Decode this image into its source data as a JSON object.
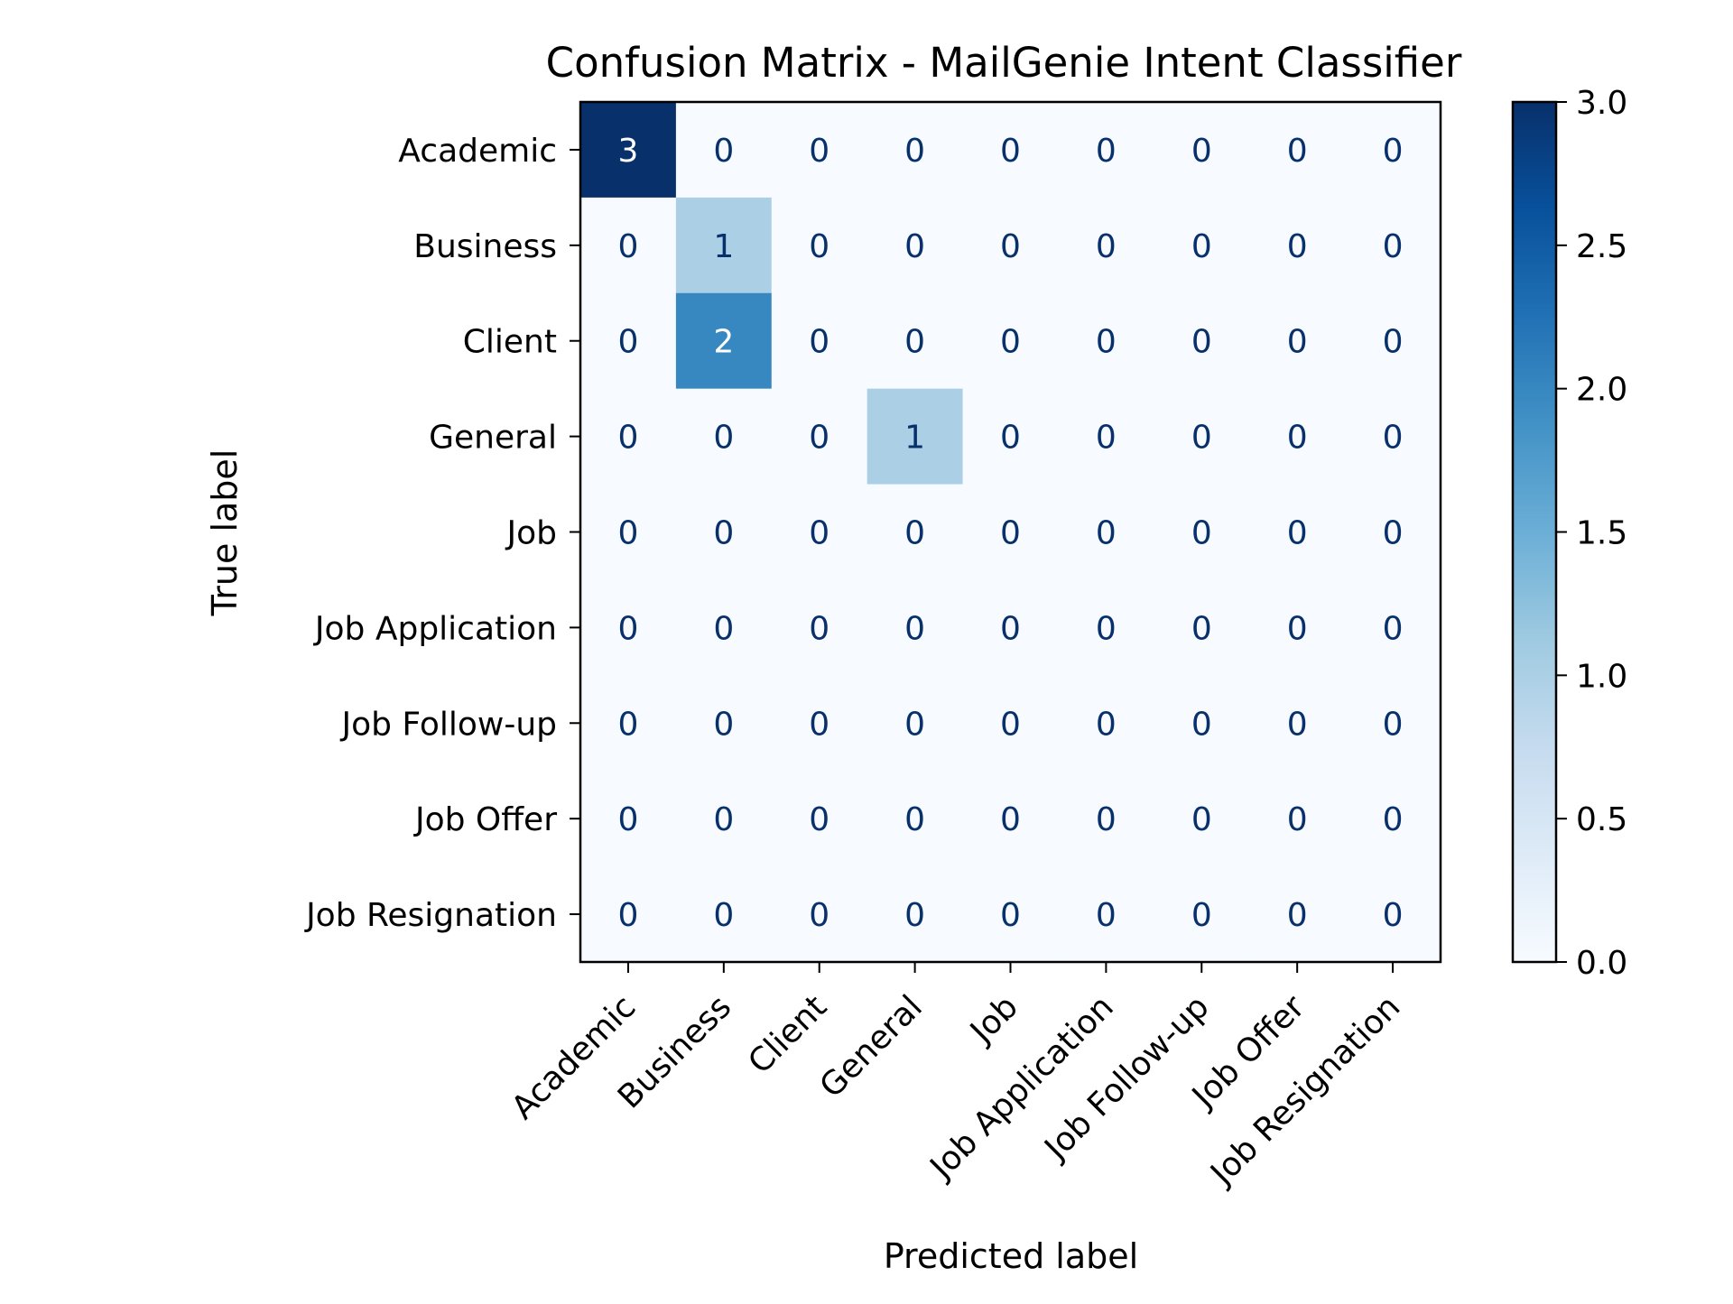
{
  "chart_data": {
    "type": "heatmap",
    "title": "Confusion Matrix - MailGenie Intent Classifier",
    "xlabel": "Predicted label",
    "ylabel": "True label",
    "x_categories": [
      "Academic",
      "Business",
      "Client",
      "General",
      "Job",
      "Job Application",
      "Job Follow-up",
      "Job Offer",
      "Job Resignation"
    ],
    "y_categories": [
      "Academic",
      "Business",
      "Client",
      "General",
      "Job",
      "Job Application",
      "Job Follow-up",
      "Job Offer",
      "Job Resignation"
    ],
    "values": [
      [
        3,
        0,
        0,
        0,
        0,
        0,
        0,
        0,
        0
      ],
      [
        0,
        1,
        0,
        0,
        0,
        0,
        0,
        0,
        0
      ],
      [
        0,
        2,
        0,
        0,
        0,
        0,
        0,
        0,
        0
      ],
      [
        0,
        0,
        0,
        1,
        0,
        0,
        0,
        0,
        0
      ],
      [
        0,
        0,
        0,
        0,
        0,
        0,
        0,
        0,
        0
      ],
      [
        0,
        0,
        0,
        0,
        0,
        0,
        0,
        0,
        0
      ],
      [
        0,
        0,
        0,
        0,
        0,
        0,
        0,
        0,
        0
      ],
      [
        0,
        0,
        0,
        0,
        0,
        0,
        0,
        0,
        0
      ],
      [
        0,
        0,
        0,
        0,
        0,
        0,
        0,
        0,
        0
      ]
    ],
    "colormap": "Blues",
    "colorbar": {
      "range": [
        0,
        3
      ],
      "ticks": [
        "0.0",
        "0.5",
        "1.0",
        "1.5",
        "2.0",
        "2.5",
        "3.0"
      ]
    },
    "colors": {
      "low": "#f7fbff",
      "mid": "#6aaed6",
      "high": "#08306b",
      "text_dark": "#08306b",
      "text_light": "#ffffff"
    }
  }
}
